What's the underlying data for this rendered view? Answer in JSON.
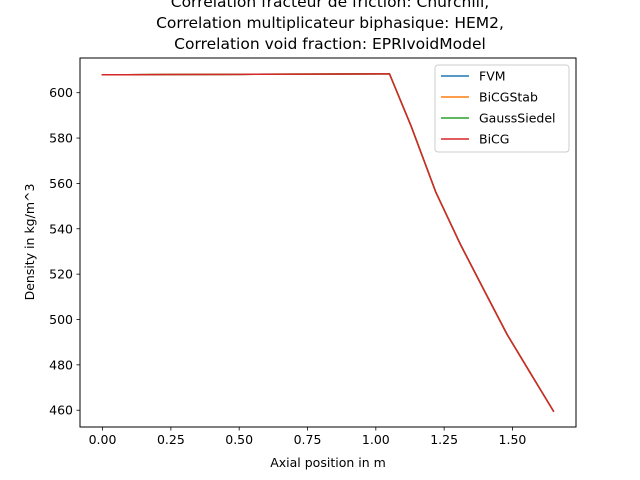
{
  "chart_data": {
    "type": "line",
    "title_lines": [
      "Correlation fracteur de friction: Churchill,",
      "Correlation multiplicateur biphasique: HEM2,",
      "Correlation void fraction: EPRIvoidModel"
    ],
    "xlabel": "Axial position in m",
    "ylabel": "Density in kg/m^3",
    "xlim": [
      -0.0825,
      1.7325
    ],
    "ylim": [
      452.6,
      615.3
    ],
    "xticks": [
      0.0,
      0.25,
      0.5,
      0.75,
      1.0,
      1.25,
      1.5
    ],
    "xtick_labels": [
      "0.00",
      "0.25",
      "0.50",
      "0.75",
      "1.00",
      "1.25",
      "1.50"
    ],
    "yticks": [
      460,
      480,
      500,
      520,
      540,
      560,
      580,
      600
    ],
    "ytick_labels": [
      "460",
      "480",
      "500",
      "520",
      "540",
      "560",
      "580",
      "600"
    ],
    "grid": false,
    "legend_position": "upper right",
    "x": [
      0.0,
      0.25,
      0.5,
      0.75,
      1.05,
      1.13,
      1.22,
      1.31,
      1.4,
      1.48,
      1.57,
      1.65
    ],
    "series": [
      {
        "name": "FVM",
        "color": "#1f77b4",
        "values": [
          607.9,
          608.0,
          608.1,
          608.2,
          608.3,
          585.0,
          556.0,
          533.0,
          512.0,
          493.5,
          475.5,
          459.6
        ]
      },
      {
        "name": "BiCGStab",
        "color": "#ff7f0e",
        "values": [
          607.9,
          608.0,
          608.1,
          608.2,
          608.3,
          585.0,
          556.0,
          533.0,
          512.0,
          493.5,
          475.5,
          459.6
        ]
      },
      {
        "name": "GaussSiedel",
        "color": "#2ca02c",
        "values": [
          607.9,
          608.0,
          608.1,
          608.2,
          608.3,
          585.0,
          556.0,
          533.0,
          512.0,
          493.5,
          475.5,
          459.6
        ]
      },
      {
        "name": "BiCG",
        "color": "#d62728",
        "values": [
          607.9,
          608.0,
          608.1,
          608.2,
          608.3,
          585.0,
          556.0,
          533.0,
          512.0,
          493.5,
          475.5,
          459.6
        ]
      }
    ]
  }
}
